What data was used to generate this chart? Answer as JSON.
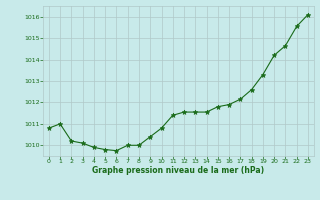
{
  "x": [
    0,
    1,
    2,
    3,
    4,
    5,
    6,
    7,
    8,
    9,
    10,
    11,
    12,
    13,
    14,
    15,
    16,
    17,
    18,
    19,
    20,
    21,
    22,
    23
  ],
  "y": [
    1010.8,
    1011.0,
    1010.2,
    1010.1,
    1009.9,
    1009.8,
    1009.75,
    1010.0,
    1010.0,
    1010.4,
    1010.8,
    1011.4,
    1011.55,
    1011.55,
    1011.55,
    1011.8,
    1011.9,
    1012.15,
    1012.6,
    1013.3,
    1014.2,
    1014.65,
    1015.55,
    1016.1
  ],
  "line_color": "#1a6b1a",
  "marker": "*",
  "marker_size": 3.5,
  "bg_color": "#c8eaea",
  "grid_color": "#b0c8c8",
  "xlabel": "Graphe pression niveau de la mer (hPa)",
  "xlabel_color": "#1a6b1a",
  "tick_color": "#1a6b1a",
  "ylim": [
    1009.5,
    1016.5
  ],
  "xlim": [
    -0.5,
    23.5
  ],
  "yticks": [
    1010,
    1011,
    1012,
    1013,
    1014,
    1015,
    1016
  ],
  "xticks": [
    0,
    1,
    2,
    3,
    4,
    5,
    6,
    7,
    8,
    9,
    10,
    11,
    12,
    13,
    14,
    15,
    16,
    17,
    18,
    19,
    20,
    21,
    22,
    23
  ],
  "figsize": [
    3.2,
    2.0
  ],
  "dpi": 100
}
